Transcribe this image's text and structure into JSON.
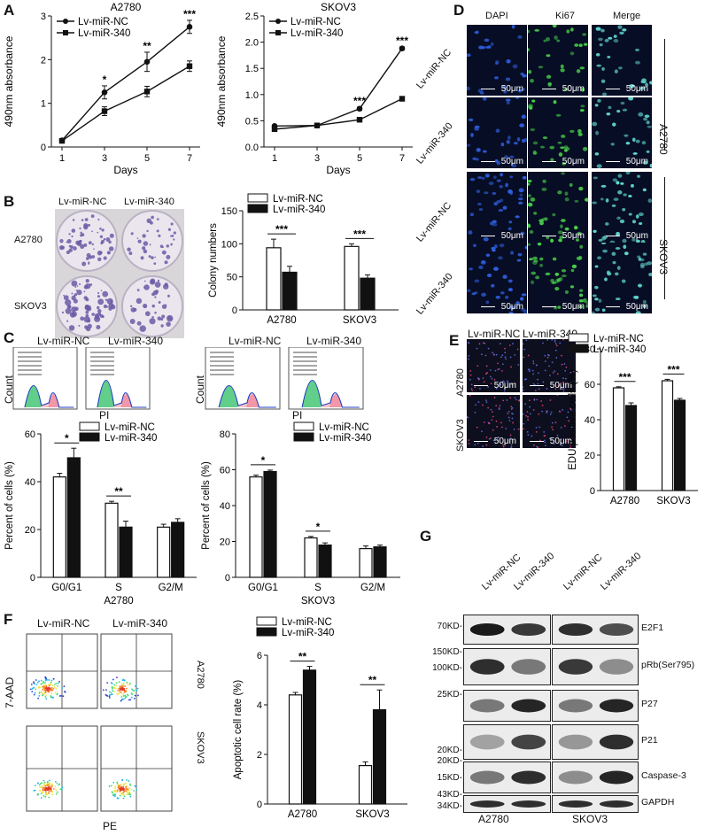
{
  "figure": {
    "panels": [
      "A",
      "B",
      "C",
      "D",
      "E",
      "F",
      "G"
    ]
  },
  "legend": {
    "nc": "Lv-miR-NC",
    "mir": "Lv-miR-340"
  },
  "panelA": {
    "ylabel": "490nm absorbance",
    "xlabel": "Days"
  },
  "panelB": {
    "cols": [
      "Lv-miR-NC",
      "Lv-miR-340"
    ],
    "rows": [
      "A2780",
      "SKOV3"
    ]
  },
  "panelC": {
    "cols": [
      "Lv-miR-NC",
      "Lv-miR-340"
    ],
    "count_label": "Count",
    "pi_label": "PI"
  },
  "panelD": {
    "cols": [
      "DAPI",
      "Ki67",
      "Merge"
    ],
    "rows": [
      "Lv-miR-NC",
      "Lv-miR-340",
      "Lv-miR-NC",
      "Lv-miR-340"
    ],
    "groups": [
      "A2780",
      "SKOV3"
    ],
    "scale": "50μm"
  },
  "panelE": {
    "cols": [
      "Lv-miR-NC",
      "Lv-miR-340"
    ],
    "rows": [
      "A2780",
      "SKOV3"
    ],
    "scale": "50μm"
  },
  "panelF": {
    "xlabel": "PE",
    "ylabel": "7-AAD",
    "rows": [
      "A2780",
      "SKOV3"
    ],
    "cols": [
      "Lv-miR-NC",
      "Lv-miR-340"
    ]
  },
  "panelG": {
    "lanes": [
      "Lv-miR-NC",
      "Lv-miR-340",
      "Lv-miR-NC",
      "Lv-miR-340"
    ],
    "groups": [
      "A2780",
      "SKOV3"
    ],
    "markers": [
      "70KD-",
      "150KD-",
      "100KD-",
      "25KD-",
      "20KD-",
      "20KD-",
      "15KD-",
      "43KD-",
      "34KD-"
    ],
    "proteins": [
      "E2F1",
      "pRb(Ser795)",
      "P27",
      "P21",
      "Caspase-3",
      "GAPDH"
    ]
  },
  "chart_data": [
    {
      "id": "A-A2780",
      "type": "line",
      "title": "A2780",
      "xlabel": "Days",
      "ylabel": "490nm absorbance",
      "x": [
        1,
        3,
        5,
        7
      ],
      "xlim": [
        0.5,
        7.5
      ],
      "ylim": [
        0,
        3.0
      ],
      "yticks": [
        0,
        1,
        2,
        3
      ],
      "series": [
        {
          "name": "Lv-miR-NC",
          "values": [
            0.15,
            1.25,
            1.95,
            2.75
          ],
          "err": [
            0.03,
            0.15,
            0.22,
            0.15
          ]
        },
        {
          "name": "Lv-miR-340",
          "values": [
            0.14,
            0.82,
            1.27,
            1.85
          ],
          "err": [
            0.03,
            0.1,
            0.12,
            0.12
          ]
        }
      ],
      "annotations": [
        {
          "x": 3,
          "text": "*"
        },
        {
          "x": 5,
          "text": "**"
        },
        {
          "x": 7,
          "text": "***"
        }
      ]
    },
    {
      "id": "A-SKOV3",
      "type": "line",
      "title": "SKOV3",
      "xlabel": "Days",
      "ylabel": "490nm absorbance",
      "x": [
        1,
        3,
        5,
        7
      ],
      "xlim": [
        0.5,
        7.5
      ],
      "ylim": [
        0,
        2.5
      ],
      "yticks": [
        0,
        0.5,
        1.0,
        1.5,
        2.0,
        2.5
      ],
      "series": [
        {
          "name": "Lv-miR-NC",
          "values": [
            0.4,
            0.41,
            0.73,
            1.88
          ],
          "err": [
            0.02,
            0.02,
            0.03,
            0.03
          ]
        },
        {
          "name": "Lv-miR-340",
          "values": [
            0.34,
            0.41,
            0.52,
            0.92
          ],
          "err": [
            0.02,
            0.02,
            0.02,
            0.04
          ]
        }
      ],
      "annotations": [
        {
          "x": 5,
          "text": "***"
        },
        {
          "x": 7,
          "text": "***"
        }
      ]
    },
    {
      "id": "B-colony",
      "type": "bar",
      "ylabel": "Colony numbers",
      "categories": [
        "A2780",
        "SKOV3"
      ],
      "ylim": [
        0,
        150
      ],
      "yticks": [
        0,
        50,
        100,
        150
      ],
      "series": [
        {
          "name": "Lv-miR-NC",
          "values": [
            94,
            96
          ],
          "err": [
            13,
            4
          ]
        },
        {
          "name": "Lv-miR-340",
          "values": [
            57,
            48
          ],
          "err": [
            9,
            5
          ]
        }
      ],
      "annotations": [
        {
          "cat": 0,
          "text": "***"
        },
        {
          "cat": 1,
          "text": "***"
        }
      ]
    },
    {
      "id": "C-A2780",
      "type": "bar",
      "ylabel": "Percent of cells (%)",
      "xlabel": "A2780",
      "categories": [
        "G0/G1",
        "S",
        "G2/M"
      ],
      "ylim": [
        0,
        60
      ],
      "yticks": [
        0,
        20,
        40,
        60
      ],
      "series": [
        {
          "name": "Lv-miR-NC",
          "values": [
            42,
            31,
            21
          ],
          "err": [
            1.5,
            0.8,
            1.2
          ]
        },
        {
          "name": "Lv-miR-340",
          "values": [
            50,
            21,
            23
          ],
          "err": [
            4,
            2.5,
            1.5
          ]
        }
      ],
      "annotations": [
        {
          "cat": 0,
          "text": "*"
        },
        {
          "cat": 1,
          "text": "**"
        }
      ]
    },
    {
      "id": "C-SKOV3",
      "type": "bar",
      "ylabel": "Percent of cells (%)",
      "xlabel": "SKOV3",
      "categories": [
        "G0/G1",
        "S",
        "G2/M"
      ],
      "ylim": [
        0,
        80
      ],
      "yticks": [
        0,
        20,
        40,
        60,
        80
      ],
      "series": [
        {
          "name": "Lv-miR-NC",
          "values": [
            56,
            22,
            16
          ],
          "err": [
            1,
            0.8,
            1.5
          ]
        },
        {
          "name": "Lv-miR-340",
          "values": [
            59,
            18,
            17
          ],
          "err": [
            0.8,
            1.2,
            1
          ]
        }
      ],
      "annotations": [
        {
          "cat": 0,
          "text": "*"
        },
        {
          "cat": 1,
          "text": "*"
        }
      ]
    },
    {
      "id": "E-edu",
      "type": "bar",
      "ylabel": "EDU positive cells (%)",
      "categories": [
        "A2780",
        "SKOV3"
      ],
      "ylim": [
        0,
        80
      ],
      "yticks": [
        0,
        20,
        40,
        60,
        80
      ],
      "series": [
        {
          "name": "Lv-miR-NC",
          "values": [
            58,
            62
          ],
          "err": [
            0.6,
            0.8
          ]
        },
        {
          "name": "Lv-miR-340",
          "values": [
            48,
            51
          ],
          "err": [
            1.5,
            1
          ]
        }
      ],
      "annotations": [
        {
          "cat": 0,
          "text": "***"
        },
        {
          "cat": 1,
          "text": "***"
        }
      ]
    },
    {
      "id": "F-apoptosis",
      "type": "bar",
      "ylabel": "Apoptotic cell rate (%)",
      "categories": [
        "A2780",
        "SKOV3"
      ],
      "ylim": [
        0,
        6
      ],
      "yticks": [
        0,
        2,
        4,
        6
      ],
      "series": [
        {
          "name": "Lv-miR-NC",
          "values": [
            4.4,
            1.55
          ],
          "err": [
            0.1,
            0.15
          ]
        },
        {
          "name": "Lv-miR-340",
          "values": [
            5.4,
            3.8
          ],
          "err": [
            0.15,
            0.8
          ]
        }
      ],
      "annotations": [
        {
          "cat": 0,
          "text": "**"
        },
        {
          "cat": 1,
          "text": "**"
        }
      ]
    }
  ]
}
